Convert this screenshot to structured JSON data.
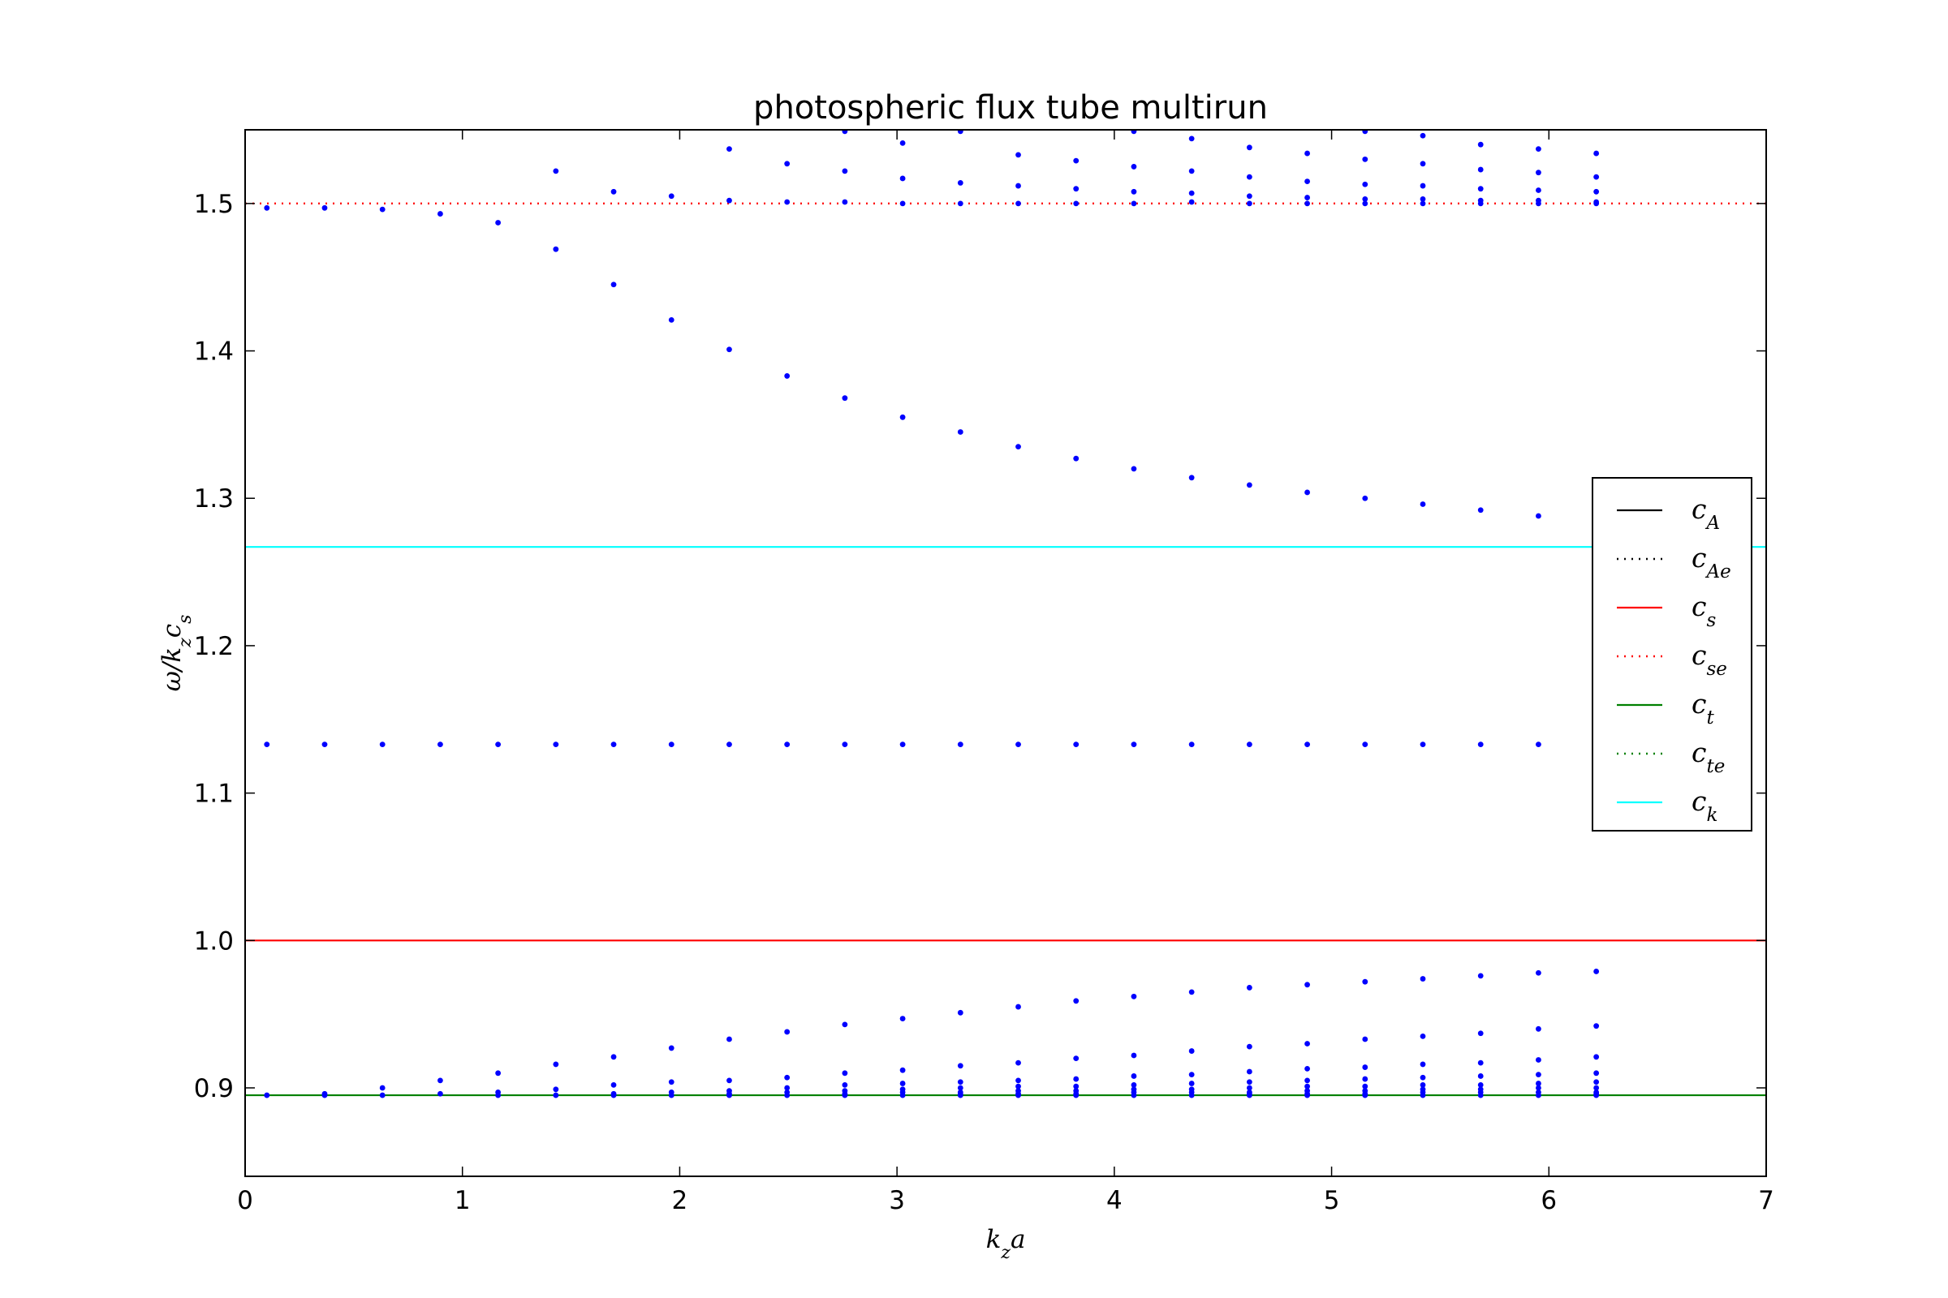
{
  "chart_data": {
    "type": "scatter",
    "title": "photospheric flux tube multirun",
    "xlabel": "k_z a",
    "ylabel": "ω/k_z c_s",
    "xlim": [
      0,
      7
    ],
    "ylim": [
      0.84,
      1.55
    ],
    "xticks": [
      0,
      1,
      2,
      3,
      4,
      5,
      6,
      7
    ],
    "xtick_labels": [
      "0",
      "1",
      "2",
      "3",
      "4",
      "5",
      "6",
      "7"
    ],
    "yticks": [
      0.9,
      1.0,
      1.1,
      1.2,
      1.3,
      1.4,
      1.5
    ],
    "ytick_labels": [
      "0.9",
      "1.0",
      "1.1",
      "1.2",
      "1.3",
      "1.4",
      "1.5"
    ],
    "grid": false,
    "legend_position": "right",
    "reference_lines": [
      {
        "name": "c_A",
        "label_base": "c",
        "label_sub": "A",
        "value": null,
        "color": "#000000",
        "style": "solid"
      },
      {
        "name": "c_Ae",
        "label_base": "c",
        "label_sub": "Ae",
        "value": null,
        "color": "#000000",
        "style": "dotted"
      },
      {
        "name": "c_s",
        "label_base": "c",
        "label_sub": "s",
        "value": 1.0,
        "color": "#ff0000",
        "style": "solid"
      },
      {
        "name": "c_se",
        "label_base": "c",
        "label_sub": "se",
        "value": 1.5,
        "color": "#ff0000",
        "style": "dotted"
      },
      {
        "name": "c_t",
        "label_base": "c",
        "label_sub": "t",
        "value": 0.895,
        "color": "#008000",
        "style": "solid"
      },
      {
        "name": "c_te",
        "label_base": "c",
        "label_sub": "te",
        "value": null,
        "color": "#008000",
        "style": "dotted"
      },
      {
        "name": "c_k",
        "label_base": "c",
        "label_sub": "k",
        "value": 1.267,
        "color": "#00ffff",
        "style": "solid"
      }
    ],
    "point_color": "#0000ff",
    "x": [
      0.1,
      0.366,
      0.632,
      0.898,
      1.164,
      1.43,
      1.696,
      1.962,
      2.228,
      2.494,
      2.76,
      3.026,
      3.292,
      3.558,
      3.824,
      4.09,
      4.356,
      4.622,
      4.888,
      5.154,
      5.42,
      5.686,
      5.952,
      6.218
    ],
    "points_by_x": [
      [
        1.497,
        1.133,
        0.895
      ],
      [
        1.497,
        1.133,
        0.896,
        0.895
      ],
      [
        1.496,
        1.133,
        0.9,
        0.895
      ],
      [
        1.493,
        1.133,
        0.905,
        0.896
      ],
      [
        1.487,
        1.133,
        0.91,
        0.897,
        0.895
      ],
      [
        1.522,
        1.469,
        1.133,
        0.916,
        0.899,
        0.895
      ],
      [
        1.508,
        1.445,
        1.133,
        0.921,
        0.902,
        0.896,
        0.895
      ],
      [
        1.505,
        1.421,
        1.133,
        0.927,
        0.904,
        0.897,
        0.895
      ],
      [
        1.537,
        1.502,
        1.401,
        1.133,
        0.933,
        0.905,
        0.898,
        0.896,
        0.895
      ],
      [
        1.527,
        1.501,
        1.383,
        1.133,
        0.938,
        0.907,
        0.9,
        0.897,
        0.895
      ],
      [
        1.549,
        1.522,
        1.501,
        1.368,
        1.133,
        0.943,
        0.91,
        0.902,
        0.898,
        0.896,
        0.895
      ],
      [
        1.541,
        1.517,
        1.5,
        1.355,
        1.133,
        0.947,
        0.912,
        0.903,
        0.899,
        0.897,
        0.895
      ],
      [
        1.549,
        1.514,
        1.5,
        1.345,
        1.133,
        0.951,
        0.915,
        0.904,
        0.9,
        0.897,
        0.896,
        0.895
      ],
      [
        1.533,
        1.512,
        1.5,
        1.335,
        1.133,
        0.955,
        0.917,
        0.905,
        0.901,
        0.898,
        0.896,
        0.895
      ],
      [
        1.529,
        1.51,
        1.5,
        1.327,
        1.133,
        0.959,
        0.92,
        0.906,
        0.901,
        0.898,
        0.896,
        0.895
      ],
      [
        1.549,
        1.525,
        1.508,
        1.5,
        1.32,
        1.133,
        0.962,
        0.922,
        0.908,
        0.902,
        0.899,
        0.897,
        0.895
      ],
      [
        1.544,
        1.522,
        1.507,
        1.501,
        1.314,
        1.133,
        0.965,
        0.925,
        0.909,
        0.903,
        0.899,
        0.897,
        0.895
      ],
      [
        1.538,
        1.518,
        1.505,
        1.5,
        1.309,
        1.133,
        0.968,
        0.928,
        0.911,
        0.904,
        0.9,
        0.897,
        0.896,
        0.895
      ],
      [
        1.534,
        1.515,
        1.504,
        1.5,
        1.304,
        1.133,
        0.97,
        0.93,
        0.913,
        0.905,
        0.901,
        0.898,
        0.896,
        0.895
      ],
      [
        1.549,
        1.53,
        1.513,
        1.503,
        1.5,
        1.3,
        1.133,
        0.972,
        0.933,
        0.914,
        0.906,
        0.901,
        0.898,
        0.896,
        0.895
      ],
      [
        1.546,
        1.527,
        1.512,
        1.503,
        1.5,
        1.296,
        1.133,
        0.974,
        0.935,
        0.916,
        0.907,
        0.902,
        0.899,
        0.897,
        0.895
      ],
      [
        1.54,
        1.523,
        1.51,
        1.502,
        1.5,
        1.292,
        1.133,
        0.976,
        0.937,
        0.917,
        0.908,
        0.902,
        0.899,
        0.897,
        0.895
      ],
      [
        1.537,
        1.521,
        1.509,
        1.502,
        1.5,
        1.288,
        1.133,
        0.978,
        0.94,
        0.919,
        0.909,
        0.903,
        0.9,
        0.897,
        0.895
      ],
      [
        1.534,
        1.518,
        1.508,
        1.501,
        1.5,
        0.979,
        0.942,
        0.921,
        0.91,
        0.904,
        0.9,
        0.897,
        0.896,
        0.895
      ]
    ]
  }
}
